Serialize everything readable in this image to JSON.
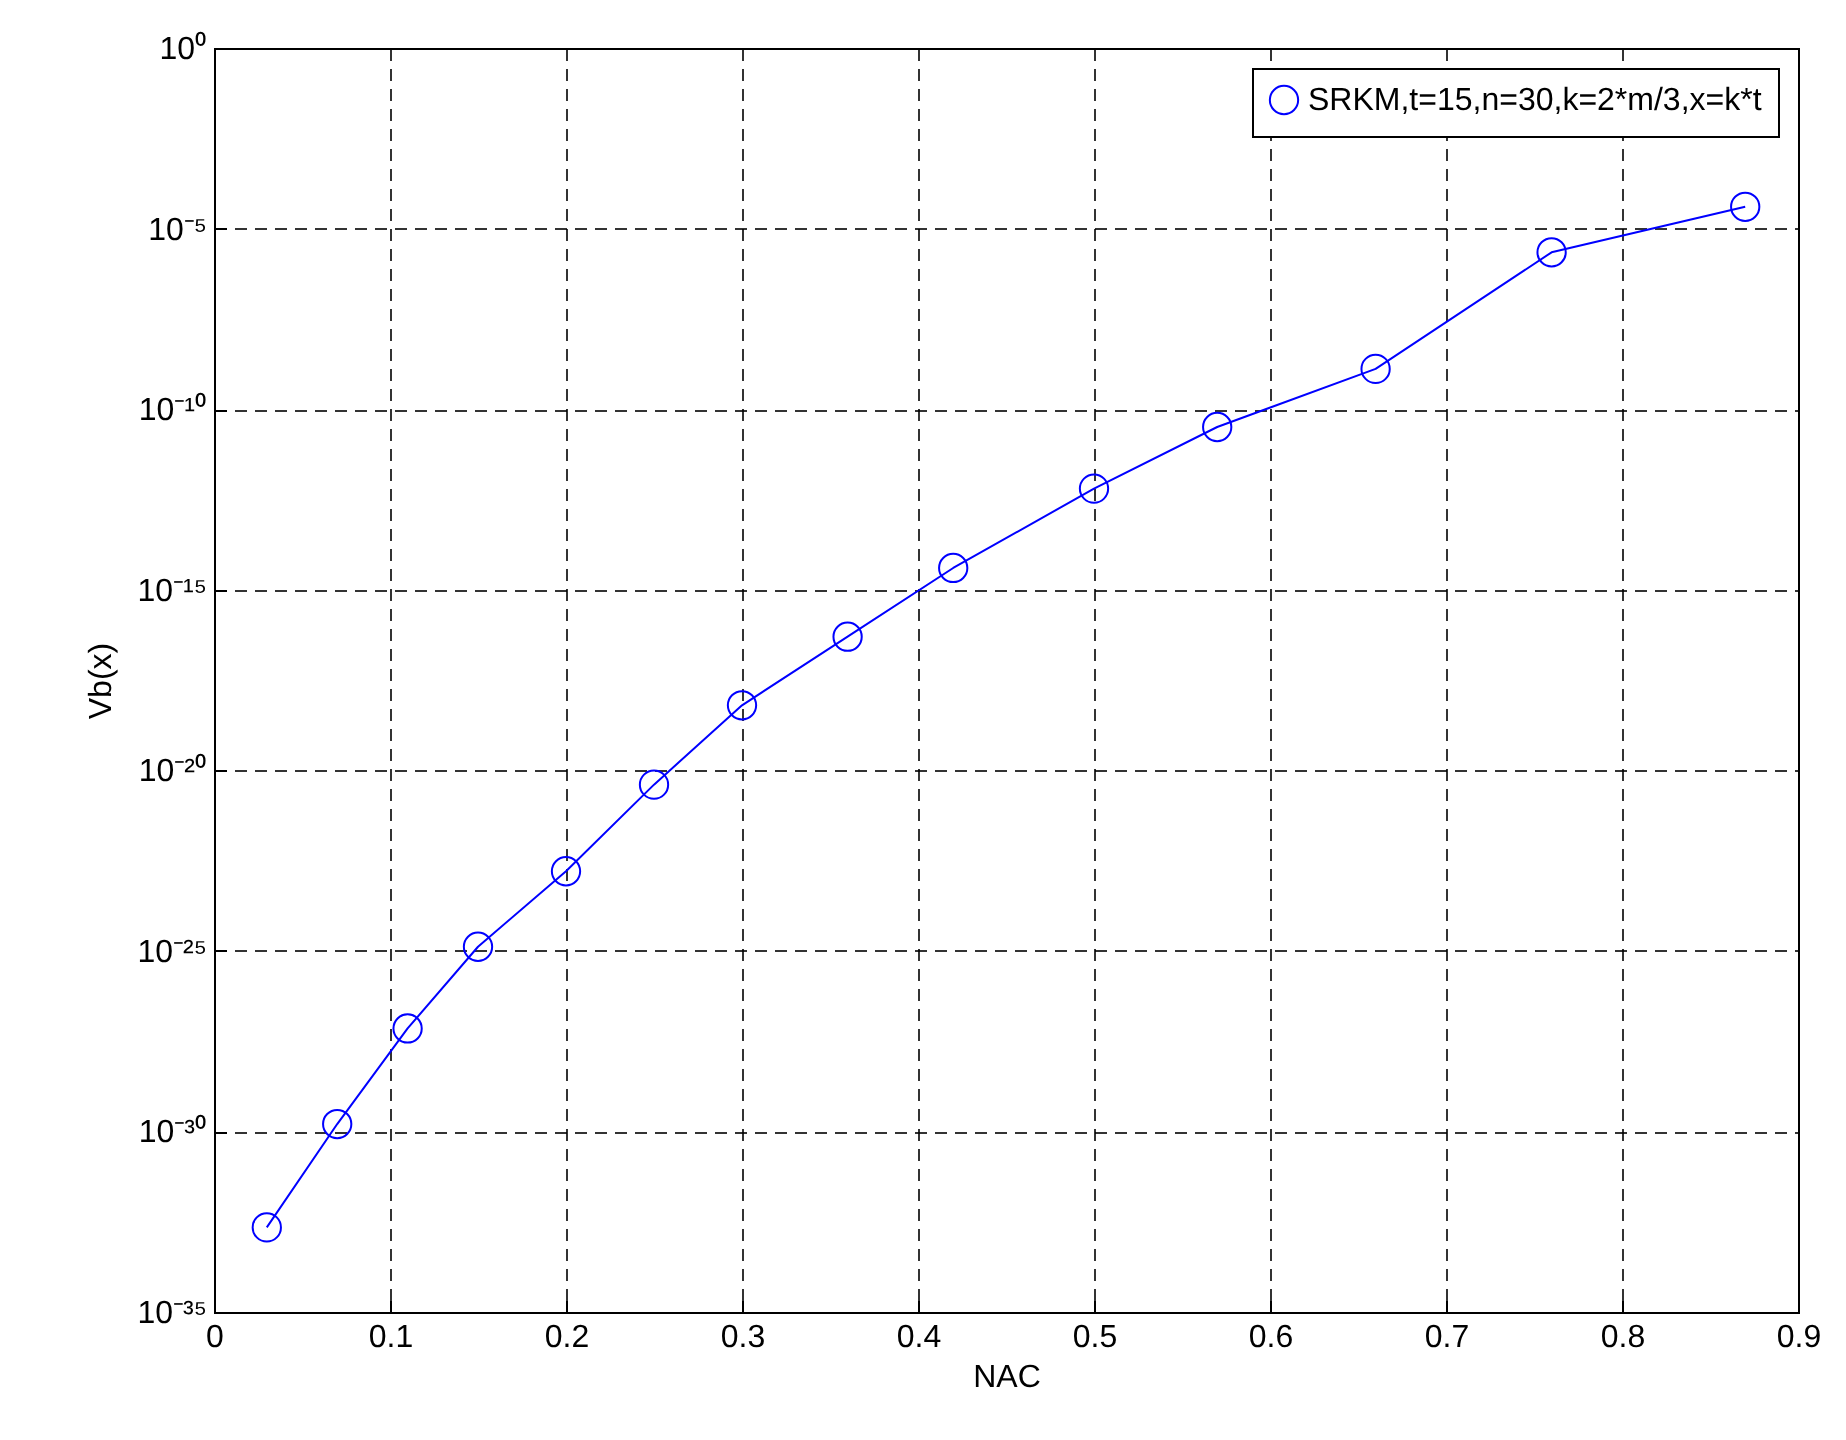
{
  "chart_data": {
    "type": "line",
    "xlabel": "NAC",
    "ylabel": "Vb(x)",
    "log": "y",
    "grid": true,
    "legend": "top right",
    "marker": "circle",
    "line_style": "solid",
    "x": [
      0.03,
      0.07,
      0.11,
      0.15,
      0.2,
      0.25,
      0.3,
      0.36,
      0.42,
      0.5,
      0.57,
      0.66,
      0.76,
      0.87
    ],
    "series": [
      {
        "name": "SRKM,t=15,n=30,k=2*m/3,x=k*t",
        "color": "#0000ff",
        "values": [
          2.2e-33,
          1.6e-30,
          7.1e-28,
          1.3e-25,
          1.6e-23,
          4e-21,
          6.3e-19,
          5e-17,
          4e-15,
          6.3e-13,
          3.2e-11,
          1.3e-09,
          2.2e-06,
          4e-05
        ]
      }
    ],
    "xlim": [
      0,
      0.9
    ],
    "xticks": [
      0,
      0.1,
      0.2,
      0.3,
      0.4,
      0.5,
      0.6,
      0.7,
      0.8,
      0.9
    ],
    "ylim": [
      1e-35,
      1
    ],
    "yticks": [
      {
        "value": 1e-35,
        "label": "10⁻³⁵"
      },
      {
        "value": 1e-30,
        "label": "10⁻³⁰"
      },
      {
        "value": 1e-25,
        "label": "10⁻²⁵"
      },
      {
        "value": 1e-20,
        "label": "10⁻²⁰"
      },
      {
        "value": 1e-15,
        "label": "10⁻¹⁵"
      },
      {
        "value": 1e-10,
        "label": "10⁻¹⁰"
      },
      {
        "value": 1e-05,
        "label": "10⁻⁵"
      },
      {
        "value": 1,
        "label": "10⁰"
      }
    ]
  }
}
